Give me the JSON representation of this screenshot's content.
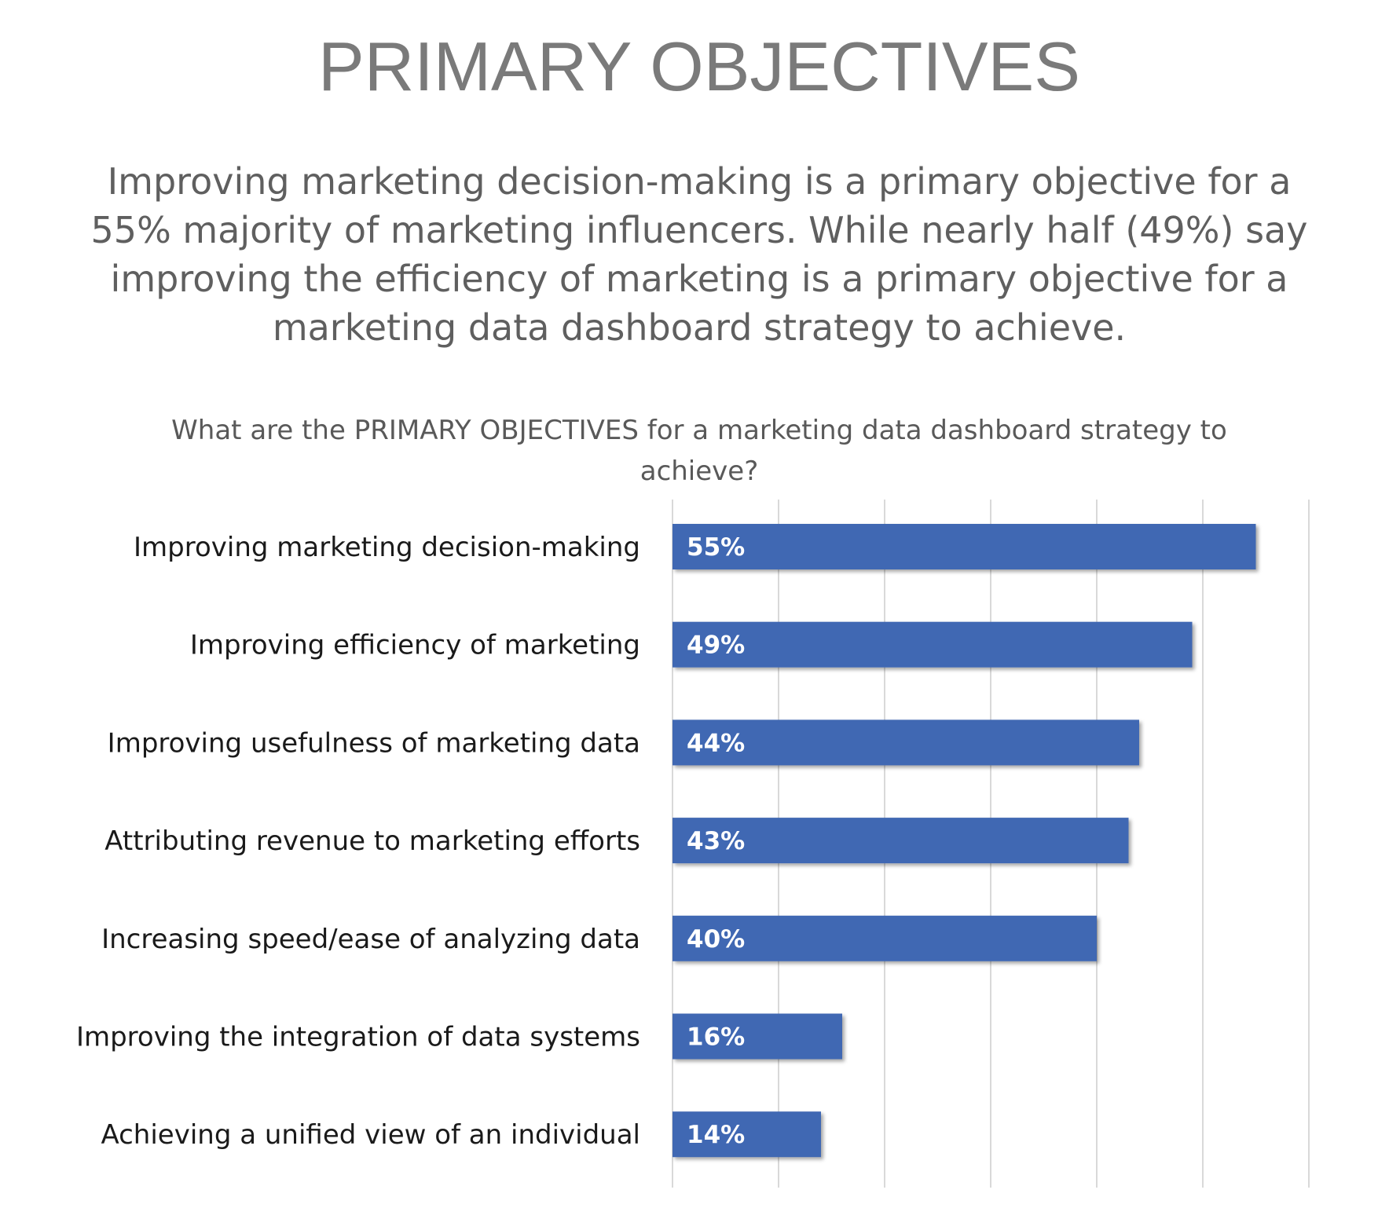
{
  "header": {
    "title": "PRIMARY OBJECTIVES",
    "summary": "Improving marketing decision-making is a primary objective for a 55% majority of marketing influencers. While nearly half (49%) say improving the efficiency of marketing is a primary objective for a marketing data dashboard strategy to achieve."
  },
  "colors": {
    "bar": "#4168b3",
    "bar_label": "#ffffff",
    "grid": "#d9d9d9",
    "category_text": "#1a1a1a"
  },
  "chart_data": {
    "type": "bar",
    "orientation": "horizontal",
    "title": "What are the PRIMARY OBJECTIVES for a marketing data dashboard strategy to achieve?",
    "categories": [
      "Improving marketing decision-making",
      "Improving efficiency of marketing",
      "Improving usefulness of marketing data",
      "Attributing revenue to marketing efforts",
      "Increasing speed/ease of analyzing data",
      "Improving the integration of data systems",
      "Achieving a unified view of an individual"
    ],
    "values": [
      55,
      49,
      44,
      43,
      40,
      16,
      14
    ],
    "value_labels": [
      "55%",
      "49%",
      "44%",
      "43%",
      "40%",
      "16%",
      "14%"
    ],
    "xlim": [
      0,
      60
    ],
    "grid": true,
    "legend": "none"
  }
}
